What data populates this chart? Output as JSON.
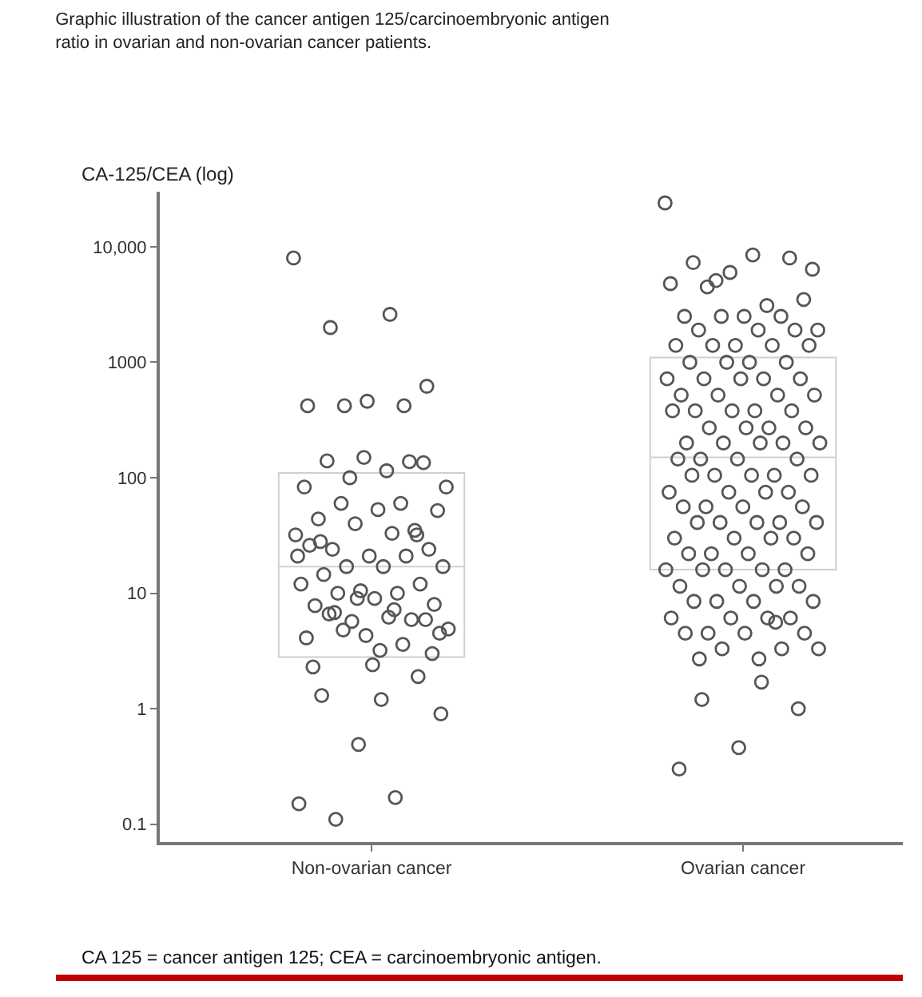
{
  "chart_data": {
    "type": "scatter",
    "title": "Graphic illustration of the cancer antigen 125/carcinoembryonic antigen\nratio in ovarian and non-ovarian cancer patients.",
    "ylabel": "CA-125/CEA (log)",
    "annotations": [
      "CA 125 = cancer antigen 125; CEA = carcinoembryonic antigen."
    ],
    "categories": [
      "Non-ovarian cancer",
      "Ovarian cancer"
    ],
    "ylim": [
      0.07,
      30000
    ],
    "yticks": [
      0.1,
      1,
      10,
      100,
      1000,
      {
        "value": 10000,
        "label": "10,000"
      }
    ],
    "log": "y",
    "grid": false,
    "marker": "circle",
    "series": [
      {
        "type": "box",
        "color": "#d0d0d0",
        "boxes": [
          {
            "q1": 2.8,
            "median": 17,
            "q3": 110
          },
          {
            "q1": 16,
            "median": 150,
            "q3": 1100
          }
        ]
      },
      {
        "color": "#555555",
        "x": [
          "Non-ovarian cancer",
          "Non-ovarian cancer",
          "Non-ovarian cancer",
          "Non-ovarian cancer",
          "Non-ovarian cancer",
          "Non-ovarian cancer",
          "Non-ovarian cancer",
          "Non-ovarian cancer",
          "Non-ovarian cancer",
          "Non-ovarian cancer",
          "Non-ovarian cancer",
          "Non-ovarian cancer",
          "Non-ovarian cancer",
          "Non-ovarian cancer",
          "Non-ovarian cancer",
          "Non-ovarian cancer",
          "Non-ovarian cancer",
          "Non-ovarian cancer",
          "Non-ovarian cancer",
          "Non-ovarian cancer",
          "Non-ovarian cancer",
          "Non-ovarian cancer",
          "Non-ovarian cancer",
          "Non-ovarian cancer",
          "Non-ovarian cancer",
          "Non-ovarian cancer",
          "Non-ovarian cancer",
          "Non-ovarian cancer",
          "Non-ovarian cancer",
          "Non-ovarian cancer",
          "Non-ovarian cancer",
          "Non-ovarian cancer",
          "Non-ovarian cancer",
          "Non-ovarian cancer",
          "Non-ovarian cancer",
          "Non-ovarian cancer",
          "Non-ovarian cancer",
          "Non-ovarian cancer",
          "Non-ovarian cancer",
          "Non-ovarian cancer",
          "Non-ovarian cancer",
          "Non-ovarian cancer",
          "Non-ovarian cancer",
          "Non-ovarian cancer",
          "Non-ovarian cancer",
          "Non-ovarian cancer",
          "Non-ovarian cancer",
          "Non-ovarian cancer",
          "Non-ovarian cancer",
          "Non-ovarian cancer",
          "Non-ovarian cancer",
          "Non-ovarian cancer",
          "Non-ovarian cancer",
          "Non-ovarian cancer",
          "Non-ovarian cancer",
          "Non-ovarian cancer",
          "Non-ovarian cancer",
          "Non-ovarian cancer",
          "Non-ovarian cancer",
          "Non-ovarian cancer",
          "Non-ovarian cancer",
          "Non-ovarian cancer",
          "Non-ovarian cancer",
          "Non-ovarian cancer",
          "Non-ovarian cancer",
          "Non-ovarian cancer",
          "Non-ovarian cancer",
          "Non-ovarian cancer",
          "Non-ovarian cancer",
          "Non-ovarian cancer",
          "Non-ovarian cancer"
        ],
        "values": [
          8000,
          2600,
          2000,
          620,
          460,
          420,
          420,
          420,
          0.9,
          1.2,
          1.3,
          1.9,
          0.49,
          0.15,
          0.17,
          0.11,
          3,
          2.4,
          2.3,
          138,
          100,
          83,
          115,
          140,
          135,
          150,
          83,
          60,
          60,
          52,
          53,
          44,
          35,
          40,
          32,
          33,
          24,
          24,
          21,
          26,
          21,
          17,
          17,
          17,
          14.5,
          12,
          10.5,
          12,
          10,
          10,
          8,
          9,
          7.8,
          5.9,
          5.7,
          4.9,
          6.2,
          6.6,
          5.9,
          4.3,
          4.1,
          3.6,
          4.8,
          4.5,
          3.2,
          28,
          32,
          9,
          21,
          7.2,
          6.8
        ]
      },
      {
        "color": "#555555",
        "x": [
          "Ovarian cancer",
          "Ovarian cancer",
          "Ovarian cancer",
          "Ovarian cancer",
          "Ovarian cancer",
          "Ovarian cancer",
          "Ovarian cancer",
          "Ovarian cancer",
          "Ovarian cancer",
          "Ovarian cancer",
          "Ovarian cancer",
          "Ovarian cancer",
          "Ovarian cancer",
          "Ovarian cancer",
          "Ovarian cancer",
          "Ovarian cancer",
          "Ovarian cancer",
          "Ovarian cancer",
          "Ovarian cancer",
          "Ovarian cancer",
          "Ovarian cancer",
          "Ovarian cancer",
          "Ovarian cancer",
          "Ovarian cancer",
          "Ovarian cancer",
          "Ovarian cancer",
          "Ovarian cancer",
          "Ovarian cancer",
          "Ovarian cancer",
          "Ovarian cancer",
          "Ovarian cancer",
          "Ovarian cancer",
          "Ovarian cancer",
          "Ovarian cancer",
          "Ovarian cancer",
          "Ovarian cancer",
          "Ovarian cancer",
          "Ovarian cancer",
          "Ovarian cancer",
          "Ovarian cancer",
          "Ovarian cancer",
          "Ovarian cancer",
          "Ovarian cancer",
          "Ovarian cancer",
          "Ovarian cancer",
          "Ovarian cancer",
          "Ovarian cancer",
          "Ovarian cancer",
          "Ovarian cancer",
          "Ovarian cancer",
          "Ovarian cancer",
          "Ovarian cancer",
          "Ovarian cancer",
          "Ovarian cancer",
          "Ovarian cancer",
          "Ovarian cancer",
          "Ovarian cancer",
          "Ovarian cancer",
          "Ovarian cancer",
          "Ovarian cancer",
          "Ovarian cancer",
          "Ovarian cancer",
          "Ovarian cancer",
          "Ovarian cancer",
          "Ovarian cancer",
          "Ovarian cancer",
          "Ovarian cancer",
          "Ovarian cancer",
          "Ovarian cancer",
          "Ovarian cancer",
          "Ovarian cancer",
          "Ovarian cancer",
          "Ovarian cancer",
          "Ovarian cancer",
          "Ovarian cancer",
          "Ovarian cancer",
          "Ovarian cancer",
          "Ovarian cancer",
          "Ovarian cancer",
          "Ovarian cancer",
          "Ovarian cancer",
          "Ovarian cancer",
          "Ovarian cancer",
          "Ovarian cancer",
          "Ovarian cancer",
          "Ovarian cancer",
          "Ovarian cancer",
          "Ovarian cancer",
          "Ovarian cancer",
          "Ovarian cancer",
          "Ovarian cancer",
          "Ovarian cancer",
          "Ovarian cancer",
          "Ovarian cancer",
          "Ovarian cancer",
          "Ovarian cancer",
          "Ovarian cancer",
          "Ovarian cancer",
          "Ovarian cancer",
          "Ovarian cancer",
          "Ovarian cancer",
          "Ovarian cancer",
          "Ovarian cancer",
          "Ovarian cancer",
          "Ovarian cancer",
          "Ovarian cancer",
          "Ovarian cancer",
          "Ovarian cancer",
          "Ovarian cancer",
          "Ovarian cancer",
          "Ovarian cancer",
          "Ovarian cancer",
          "Ovarian cancer"
        ],
        "values": [
          24000,
          1.7,
          1.2,
          1.0,
          0.46,
          0.3,
          5.6,
          5100,
          6400,
          8500,
          7300,
          8000,
          6000,
          4800,
          3100,
          4500,
          3500,
          2500,
          2500,
          2500,
          2500,
          1900,
          1900,
          1900,
          1900,
          1400,
          1400,
          1400,
          1400,
          1400,
          1000,
          1000,
          1000,
          1000,
          720,
          720,
          720,
          720,
          720,
          520,
          520,
          520,
          520,
          380,
          380,
          380,
          380,
          380,
          270,
          270,
          270,
          270,
          200,
          200,
          200,
          200,
          200,
          145,
          145,
          145,
          145,
          105,
          105,
          105,
          105,
          105,
          75,
          75,
          75,
          75,
          56,
          56,
          56,
          56,
          41,
          41,
          41,
          41,
          41,
          30,
          30,
          30,
          30,
          22,
          22,
          22,
          22,
          16,
          16,
          16,
          16,
          16,
          11.5,
          11.5,
          11.5,
          11.5,
          8.5,
          8.5,
          8.5,
          8.5,
          6.1,
          6.1,
          6.1,
          6.1,
          4.5,
          4.5,
          4.5,
          4.5,
          3.3,
          3.3,
          3.3,
          2.7,
          2.7
        ]
      }
    ]
  }
}
